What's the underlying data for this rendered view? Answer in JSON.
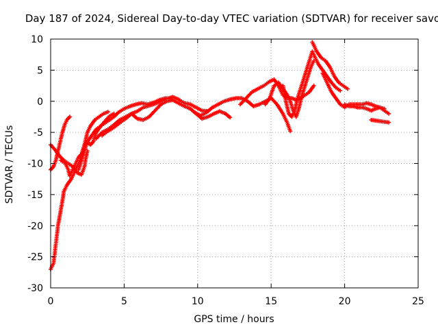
{
  "chart_data": {
    "type": "scatter",
    "title": "Day 187 of 2024, Sidereal Day-to-day VTEC variation (SDTVAR) for receiver savo",
    "xlabel": "GPS time / hours",
    "ylabel": "SDTVAR / TECUs",
    "xlim": [
      0,
      25
    ],
    "ylim": [
      -30,
      10
    ],
    "grid": true,
    "marker": "plus",
    "x_ticks": [
      {
        "value": 0,
        "label": "0"
      },
      {
        "value": 5,
        "label": "5"
      },
      {
        "value": 10,
        "label": "10"
      },
      {
        "value": 15,
        "label": "15"
      },
      {
        "value": 20,
        "label": "20"
      },
      {
        "value": 25,
        "label": "25"
      }
    ],
    "y_ticks": [
      {
        "value": 10,
        "label": "10"
      },
      {
        "value": 5,
        "label": "5"
      },
      {
        "value": 0,
        "label": "0"
      },
      {
        "value": -5,
        "label": "-5"
      },
      {
        "value": -10,
        "label": "-10"
      },
      {
        "value": -15,
        "label": "-15"
      },
      {
        "value": -20,
        "label": "-20"
      },
      {
        "value": -25,
        "label": "-25"
      },
      {
        "value": -30,
        "label": "-30"
      }
    ],
    "series": [
      {
        "name": "SDTVAR",
        "color": "#ff0000",
        "tracks": [
          [
            [
              0.0,
              -27.0
            ],
            [
              0.2,
              -26.0
            ],
            [
              0.35,
              -23.0
            ],
            [
              0.5,
              -20.0
            ],
            [
              0.65,
              -18.0
            ],
            [
              0.8,
              -16.0
            ],
            [
              0.9,
              -14.5
            ],
            [
              1.1,
              -13.5
            ],
            [
              1.4,
              -12.5
            ],
            [
              1.7,
              -11.0
            ],
            [
              1.9,
              -10.0
            ],
            [
              2.1,
              -9.0
            ],
            [
              2.3,
              -7.0
            ],
            [
              2.5,
              -5.0
            ],
            [
              2.7,
              -4.0
            ],
            [
              3.0,
              -3.0
            ],
            [
              3.3,
              -2.5
            ],
            [
              3.6,
              -2.0
            ],
            [
              3.9,
              -1.7
            ]
          ],
          [
            [
              0.0,
              -11.0
            ],
            [
              0.2,
              -10.5
            ],
            [
              0.35,
              -9.5
            ],
            [
              0.5,
              -8.0
            ],
            [
              0.65,
              -6.5
            ],
            [
              0.8,
              -5.0
            ],
            [
              0.95,
              -3.8
            ],
            [
              1.1,
              -3.0
            ],
            [
              1.3,
              -2.5
            ]
          ],
          [
            [
              0.0,
              -7.0
            ],
            [
              0.3,
              -7.8
            ],
            [
              0.6,
              -8.8
            ],
            [
              0.9,
              -9.5
            ],
            [
              1.2,
              -10.0
            ],
            [
              1.5,
              -10.5
            ],
            [
              1.8,
              -11.5
            ],
            [
              2.1,
              -11.8
            ],
            [
              2.3,
              -10.5
            ],
            [
              2.4,
              -9.0
            ],
            [
              2.5,
              -8.0
            ]
          ],
          [
            [
              0.7,
              -9.5
            ],
            [
              1.0,
              -10.0
            ],
            [
              1.2,
              -11.0
            ],
            [
              1.3,
              -12.0
            ],
            [
              1.5,
              -11.0
            ],
            [
              1.7,
              -10.0
            ],
            [
              1.9,
              -9.0
            ],
            [
              2.1,
              -8.5
            ],
            [
              2.3,
              -7.0
            ],
            [
              2.5,
              -6.5
            ],
            [
              2.7,
              -7.0
            ],
            [
              2.9,
              -6.5
            ],
            [
              3.1,
              -5.0
            ],
            [
              3.4,
              -4.0
            ],
            [
              3.7,
              -3.2
            ],
            [
              4.0,
              -2.4
            ],
            [
              4.3,
              -2.0
            ]
          ],
          [
            [
              1.9,
              -11.0
            ],
            [
              2.1,
              -9.5
            ],
            [
              2.3,
              -8.0
            ],
            [
              2.5,
              -6.5
            ],
            [
              2.8,
              -5.5
            ],
            [
              3.1,
              -4.5
            ],
            [
              3.4,
              -4.0
            ],
            [
              3.7,
              -3.5
            ],
            [
              4.0,
              -3.0
            ],
            [
              4.3,
              -2.5
            ],
            [
              4.6,
              -1.8
            ],
            [
              5.0,
              -1.2
            ],
            [
              5.4,
              -0.8
            ],
            [
              5.8,
              -0.5
            ],
            [
              6.2,
              -0.3
            ],
            [
              6.6,
              -0.5
            ],
            [
              7.0,
              -0.2
            ],
            [
              7.4,
              0.2
            ],
            [
              7.8,
              0.5
            ],
            [
              8.2,
              0.4
            ]
          ],
          [
            [
              3.1,
              -6.0
            ],
            [
              3.5,
              -5.0
            ],
            [
              3.9,
              -4.5
            ],
            [
              4.3,
              -3.8
            ],
            [
              4.7,
              -3.0
            ],
            [
              5.1,
              -2.5
            ],
            [
              5.5,
              -2.0
            ],
            [
              5.9,
              -2.8
            ],
            [
              6.3,
              -3.0
            ],
            [
              6.7,
              -2.5
            ],
            [
              7.1,
              -1.5
            ],
            [
              7.5,
              -0.5
            ],
            [
              7.9,
              0.0
            ],
            [
              8.3,
              0.2
            ],
            [
              8.7,
              -0.3
            ],
            [
              9.1,
              -0.8
            ],
            [
              9.5,
              -1.2
            ],
            [
              9.9,
              -2.0
            ],
            [
              10.3,
              -2.8
            ],
            [
              10.7,
              -2.5
            ],
            [
              11.1,
              -2.0
            ],
            [
              11.5,
              -1.6
            ],
            [
              11.9,
              -2.0
            ],
            [
              12.2,
              -2.6
            ]
          ],
          [
            [
              3.5,
              -5.5
            ],
            [
              3.9,
              -4.8
            ],
            [
              4.3,
              -4.2
            ],
            [
              4.7,
              -3.5
            ],
            [
              5.1,
              -2.8
            ],
            [
              5.5,
              -2.0
            ],
            [
              5.9,
              -1.6
            ],
            [
              6.3,
              -1.0
            ],
            [
              6.7,
              -0.7
            ],
            [
              7.1,
              -0.4
            ],
            [
              7.5,
              0.0
            ],
            [
              7.9,
              0.4
            ],
            [
              8.3,
              0.7
            ],
            [
              8.7,
              0.3
            ],
            [
              9.1,
              -0.3
            ],
            [
              9.5,
              -0.5
            ],
            [
              9.9,
              -1.0
            ],
            [
              10.3,
              -1.5
            ],
            [
              10.7,
              -1.6
            ]
          ],
          [
            [
              9.8,
              -1.8
            ],
            [
              10.2,
              -2.3
            ],
            [
              10.6,
              -1.8
            ],
            [
              11.0,
              -1.0
            ],
            [
              11.4,
              -0.5
            ],
            [
              11.8,
              0.0
            ],
            [
              12.2,
              0.3
            ],
            [
              12.6,
              0.5
            ],
            [
              13.0,
              0.5
            ],
            [
              13.4,
              0.0
            ],
            [
              13.8,
              -0.8
            ],
            [
              14.2,
              -0.5
            ],
            [
              14.6,
              0.0
            ],
            [
              15.0,
              0.5
            ],
            [
              15.4,
              -0.5
            ],
            [
              15.8,
              -2.0
            ],
            [
              16.1,
              -3.5
            ],
            [
              16.3,
              -4.8
            ]
          ],
          [
            [
              12.9,
              -0.5
            ],
            [
              13.3,
              0.5
            ],
            [
              13.7,
              1.5
            ],
            [
              14.1,
              2.0
            ],
            [
              14.5,
              2.5
            ],
            [
              14.9,
              3.2
            ],
            [
              15.2,
              3.5
            ],
            [
              15.5,
              2.5
            ],
            [
              15.8,
              1.0
            ],
            [
              16.1,
              0.5
            ],
            [
              16.4,
              0.5
            ],
            [
              16.7,
              0.2
            ],
            [
              17.0,
              0.5
            ],
            [
              17.3,
              1.0
            ],
            [
              17.6,
              1.5
            ],
            [
              17.9,
              2.5
            ]
          ],
          [
            [
              14.6,
              -0.5
            ],
            [
              14.9,
              0.5
            ],
            [
              15.2,
              2.5
            ],
            [
              15.5,
              3.0
            ],
            [
              15.8,
              2.0
            ],
            [
              16.1,
              1.0
            ],
            [
              16.3,
              0.0
            ],
            [
              16.5,
              -1.5
            ],
            [
              16.7,
              -2.5
            ],
            [
              16.9,
              -1.0
            ],
            [
              17.1,
              1.0
            ],
            [
              17.3,
              2.5
            ],
            [
              17.5,
              4.0
            ],
            [
              17.7,
              5.5
            ],
            [
              17.9,
              6.5
            ]
          ],
          [
            [
              15.8,
              2.5
            ],
            [
              16.0,
              0.0
            ],
            [
              16.2,
              -2.0
            ],
            [
              16.4,
              -2.5
            ],
            [
              16.6,
              -1.5
            ],
            [
              16.8,
              0.5
            ],
            [
              17.0,
              2.0
            ],
            [
              17.2,
              3.5
            ],
            [
              17.4,
              5.0
            ],
            [
              17.6,
              6.5
            ],
            [
              17.8,
              8.0
            ],
            [
              18.0,
              7.0
            ],
            [
              18.2,
              6.0
            ],
            [
              18.5,
              5.0
            ],
            [
              18.8,
              4.0
            ],
            [
              19.1,
              3.0
            ],
            [
              19.4,
              2.2
            ],
            [
              19.7,
              1.7
            ]
          ],
          [
            [
              17.8,
              9.5
            ],
            [
              18.1,
              8.0
            ],
            [
              18.4,
              7.0
            ],
            [
              18.7,
              6.5
            ],
            [
              19.0,
              5.5
            ],
            [
              19.3,
              4.0
            ],
            [
              19.6,
              3.0
            ],
            [
              19.9,
              2.5
            ],
            [
              20.2,
              2.0
            ]
          ],
          [
            [
              18.5,
              4.5
            ],
            [
              18.8,
              3.0
            ],
            [
              19.1,
              1.5
            ],
            [
              19.4,
              0.5
            ],
            [
              19.7,
              -0.5
            ],
            [
              20.0,
              -1.0
            ],
            [
              20.3,
              -0.5
            ],
            [
              20.6,
              -0.5
            ],
            [
              20.9,
              -0.5
            ],
            [
              21.2,
              -0.5
            ],
            [
              21.5,
              -0.3
            ],
            [
              21.8,
              -0.5
            ],
            [
              22.1,
              -0.8
            ],
            [
              22.4,
              -1.0
            ],
            [
              22.7,
              -1.5
            ],
            [
              23.0,
              -2.0
            ]
          ],
          [
            [
              20.0,
              -0.5
            ],
            [
              20.3,
              -0.8
            ],
            [
              20.6,
              -0.8
            ],
            [
              20.9,
              -1.0
            ],
            [
              21.2,
              -1.0
            ],
            [
              21.5,
              -1.2
            ],
            [
              21.8,
              -1.5
            ],
            [
              22.1,
              -1.2
            ],
            [
              22.4,
              -1.0
            ],
            [
              22.7,
              -1.2
            ]
          ],
          [
            [
              21.8,
              -3.0
            ],
            [
              22.1,
              -3.1
            ],
            [
              22.4,
              -3.2
            ],
            [
              22.7,
              -3.3
            ],
            [
              23.0,
              -3.4
            ]
          ]
        ]
      }
    ]
  }
}
